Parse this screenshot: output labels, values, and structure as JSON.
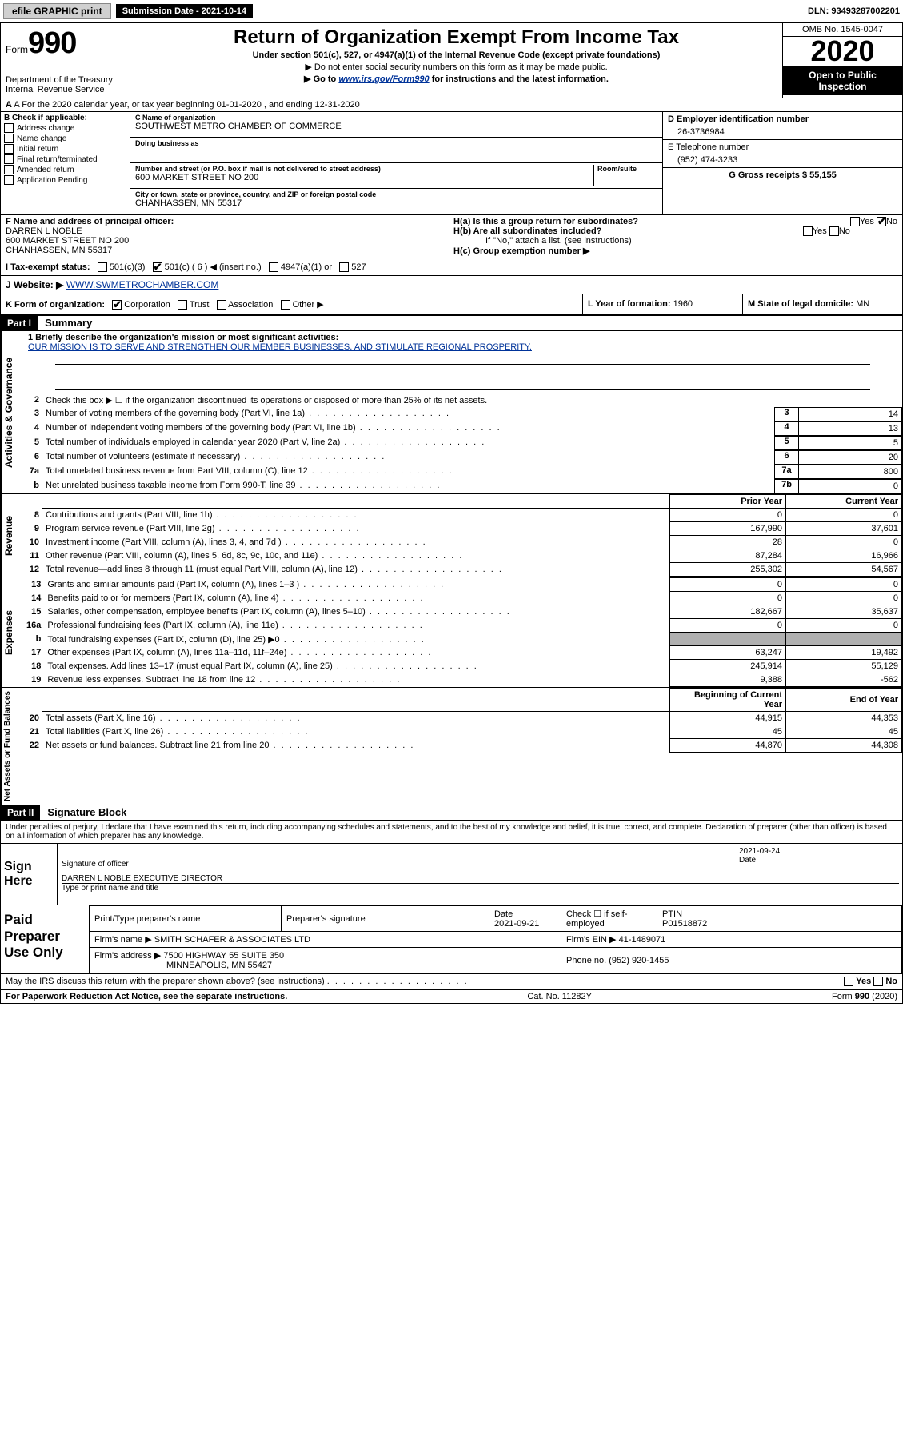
{
  "topbar": {
    "efile": "efile GRAPHIC print",
    "sub_label": "Submission Date - 2021-10-14",
    "dln": "DLN: 93493287002201"
  },
  "header": {
    "form_word": "Form",
    "form_num": "990",
    "dept": "Department of the Treasury",
    "irs": "Internal Revenue Service",
    "title": "Return of Organization Exempt From Income Tax",
    "sub": "Under section 501(c), 527, or 4947(a)(1) of the Internal Revenue Code (except private foundations)",
    "line2": "▶ Do not enter social security numbers on this form as it may be made public.",
    "line3_pre": "▶ Go to ",
    "line3_link": "www.irs.gov/Form990",
    "line3_post": " for instructions and the latest information.",
    "omb": "OMB No. 1545-0047",
    "year": "2020",
    "open": "Open to Public Inspection"
  },
  "row_a": "A For the 2020 calendar year, or tax year beginning 01-01-2020    , and ending 12-31-2020",
  "col_b": {
    "title": "B Check if applicable:",
    "items": [
      "Address change",
      "Name change",
      "Initial return",
      "Final return/terminated",
      "Amended return",
      "Application Pending"
    ]
  },
  "col_c": {
    "name_label": "C Name of organization",
    "name": "SOUTHWEST METRO CHAMBER OF COMMERCE",
    "dba_label": "Doing business as",
    "dba": "",
    "street_label": "Number and street (or P.O. box if mail is not delivered to street address)",
    "room_label": "Room/suite",
    "street": "600 MARKET STREET NO 200",
    "city_label": "City or town, state or province, country, and ZIP or foreign postal code",
    "city": "CHANHASSEN, MN  55317"
  },
  "col_d": {
    "d_label": "D Employer identification number",
    "d_val": "26-3736984",
    "e_label": "E Telephone number",
    "e_val": "(952) 474-3233",
    "g_label": "G Gross receipts $ 55,155"
  },
  "f": {
    "label": "F  Name and address of principal officer:",
    "name": "DARREN L NOBLE",
    "addr1": "600 MARKET STREET NO 200",
    "addr2": "CHANHASSEN, MN  55317"
  },
  "h": {
    "a": "H(a)  Is this a group return for subordinates?",
    "b": "H(b)  Are all subordinates included?",
    "b_note": "If \"No,\" attach a list. (see instructions)",
    "c": "H(c)  Group exemption number ▶",
    "yes": "Yes",
    "no": "No"
  },
  "i": {
    "label": "I  Tax-exempt status:",
    "opts": [
      "501(c)(3)",
      "501(c) ( 6 ) ◀ (insert no.)",
      "4947(a)(1) or",
      "527"
    ]
  },
  "j": {
    "label": "J  Website: ▶",
    "val": "WWW.SWMETROCHAMBER.COM"
  },
  "k": {
    "label": "K Form of organization:",
    "opts": [
      "Corporation",
      "Trust",
      "Association",
      "Other ▶"
    ]
  },
  "l": {
    "label": "L Year of formation:",
    "val": "1960"
  },
  "m": {
    "label": "M State of legal domicile:",
    "val": "MN"
  },
  "part1": {
    "num": "Part I",
    "title": "Summary"
  },
  "gov": {
    "label": "Activities & Governance",
    "l1": "1  Briefly describe the organization's mission or most significant activities:",
    "mission": "OUR MISSION IS TO SERVE AND STRENGTHEN OUR MEMBER BUSINESSES, AND STIMULATE REGIONAL PROSPERITY.",
    "l2": "Check this box ▶ ☐  if the organization discontinued its operations or disposed of more than 25% of its net assets.",
    "rows": [
      {
        "n": "3",
        "t": "Number of voting members of the governing body (Part VI, line 1a)",
        "bn": "3",
        "v": "14"
      },
      {
        "n": "4",
        "t": "Number of independent voting members of the governing body (Part VI, line 1b)",
        "bn": "4",
        "v": "13"
      },
      {
        "n": "5",
        "t": "Total number of individuals employed in calendar year 2020 (Part V, line 2a)",
        "bn": "5",
        "v": "5"
      },
      {
        "n": "6",
        "t": "Total number of volunteers (estimate if necessary)",
        "bn": "6",
        "v": "20"
      },
      {
        "n": "7a",
        "t": "Total unrelated business revenue from Part VIII, column (C), line 12",
        "bn": "7a",
        "v": "800"
      },
      {
        "n": "b",
        "t": "Net unrelated business taxable income from Form 990-T, line 39",
        "bn": "7b",
        "v": "0"
      }
    ]
  },
  "rev": {
    "label": "Revenue",
    "h_prior": "Prior Year",
    "h_curr": "Current Year",
    "rows": [
      {
        "n": "8",
        "t": "Contributions and grants (Part VIII, line 1h)",
        "p": "0",
        "c": "0"
      },
      {
        "n": "9",
        "t": "Program service revenue (Part VIII, line 2g)",
        "p": "167,990",
        "c": "37,601"
      },
      {
        "n": "10",
        "t": "Investment income (Part VIII, column (A), lines 3, 4, and 7d )",
        "p": "28",
        "c": "0"
      },
      {
        "n": "11",
        "t": "Other revenue (Part VIII, column (A), lines 5, 6d, 8c, 9c, 10c, and 11e)",
        "p": "87,284",
        "c": "16,966"
      },
      {
        "n": "12",
        "t": "Total revenue—add lines 8 through 11 (must equal Part VIII, column (A), line 12)",
        "p": "255,302",
        "c": "54,567"
      }
    ]
  },
  "exp": {
    "label": "Expenses",
    "rows": [
      {
        "n": "13",
        "t": "Grants and similar amounts paid (Part IX, column (A), lines 1–3 )",
        "p": "0",
        "c": "0"
      },
      {
        "n": "14",
        "t": "Benefits paid to or for members (Part IX, column (A), line 4)",
        "p": "0",
        "c": "0"
      },
      {
        "n": "15",
        "t": "Salaries, other compensation, employee benefits (Part IX, column (A), lines 5–10)",
        "p": "182,667",
        "c": "35,637"
      },
      {
        "n": "16a",
        "t": "Professional fundraising fees (Part IX, column (A), line 11e)",
        "p": "0",
        "c": "0"
      },
      {
        "n": "b",
        "t": "Total fundraising expenses (Part IX, column (D), line 25) ▶0",
        "p": "",
        "c": "",
        "shade": true
      },
      {
        "n": "17",
        "t": "Other expenses (Part IX, column (A), lines 11a–11d, 11f–24e)",
        "p": "63,247",
        "c": "19,492"
      },
      {
        "n": "18",
        "t": "Total expenses. Add lines 13–17 (must equal Part IX, column (A), line 25)",
        "p": "245,914",
        "c": "55,129"
      },
      {
        "n": "19",
        "t": "Revenue less expenses. Subtract line 18 from line 12",
        "p": "9,388",
        "c": "-562"
      }
    ]
  },
  "net": {
    "label": "Net Assets or Fund Balances",
    "h_beg": "Beginning of Current Year",
    "h_end": "End of Year",
    "rows": [
      {
        "n": "20",
        "t": "Total assets (Part X, line 16)",
        "p": "44,915",
        "c": "44,353"
      },
      {
        "n": "21",
        "t": "Total liabilities (Part X, line 26)",
        "p": "45",
        "c": "45"
      },
      {
        "n": "22",
        "t": "Net assets or fund balances. Subtract line 21 from line 20",
        "p": "44,870",
        "c": "44,308"
      }
    ]
  },
  "part2": {
    "num": "Part II",
    "title": "Signature Block"
  },
  "decl": "Under penalties of perjury, I declare that I have examined this return, including accompanying schedules and statements, and to the best of my knowledge and belief, it is true, correct, and complete. Declaration of preparer (other than officer) is based on all information of which preparer has any knowledge.",
  "sign": {
    "label": "Sign Here",
    "sig_of": "Signature of officer",
    "date": "2021-09-24",
    "date_l": "Date",
    "name": "DARREN L NOBLE  EXECUTIVE DIRECTOR",
    "name_l": "Type or print name and title"
  },
  "paid": {
    "label": "Paid Preparer Use Only",
    "h1": "Print/Type preparer's name",
    "h2": "Preparer's signature",
    "h3": "Date",
    "h3v": "2021-09-21",
    "h4": "Check ☐ if self-employed",
    "h5": "PTIN",
    "h5v": "P01518872",
    "firm_l": "Firm's name    ▶",
    "firm": "SMITH SCHAFER & ASSOCIATES LTD",
    "ein_l": "Firm's EIN ▶",
    "ein": "41-1489071",
    "addr_l": "Firm's address ▶",
    "addr1": "7500 HIGHWAY 55 SUITE 350",
    "addr2": "MINNEAPOLIS, MN  55427",
    "phone_l": "Phone no.",
    "phone": "(952) 920-1455"
  },
  "discuss": "May the IRS discuss this return with the preparer shown above? (see instructions)",
  "footer": {
    "left": "For Paperwork Reduction Act Notice, see the separate instructions.",
    "mid": "Cat. No. 11282Y",
    "right": "Form 990 (2020)"
  }
}
